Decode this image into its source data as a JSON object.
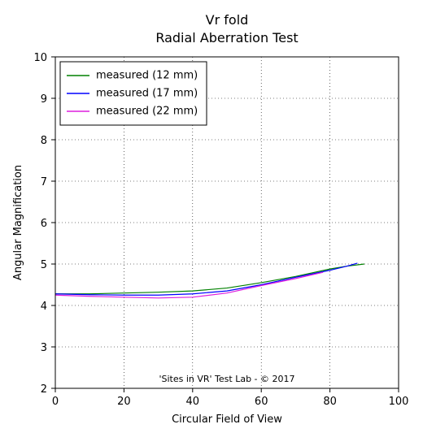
{
  "chart": {
    "type": "line",
    "title_line1": "Vr fold",
    "title_line2": "Radial Aberration Test",
    "title_fontsize": 16,
    "xlabel": "Circular Field of View",
    "ylabel": "Angular Magnification",
    "label_fontsize": 13,
    "tick_fontsize": 13,
    "footer_text": "'Sites in VR' Test Lab - © 2017",
    "footer_fontsize": 11,
    "background_color": "#ffffff",
    "plot_border_color": "#000000",
    "grid_color": "#000000",
    "grid_dash": "1 3",
    "xlim": [
      0,
      100
    ],
    "ylim": [
      2,
      10
    ],
    "xtick_step": 20,
    "ytick_step": 1,
    "xticks": [
      0,
      20,
      40,
      60,
      80,
      100
    ],
    "yticks": [
      2,
      3,
      4,
      5,
      6,
      7,
      8,
      9,
      10
    ],
    "legend": {
      "position": "upper-left",
      "border_color": "#000000",
      "background_color": "#ffffff",
      "fontsize": 13
    },
    "series": [
      {
        "label": "measured (12 mm)",
        "color": "#008000",
        "linewidth": 1.2,
        "x": [
          0,
          10,
          20,
          30,
          40,
          50,
          60,
          70,
          80,
          85,
          90
        ],
        "y": [
          4.28,
          4.28,
          4.3,
          4.32,
          4.35,
          4.42,
          4.55,
          4.7,
          4.88,
          4.95,
          5.0
        ]
      },
      {
        "label": "measured (17 mm)",
        "color": "#0000ff",
        "linewidth": 1.2,
        "x": [
          0,
          10,
          20,
          30,
          40,
          50,
          60,
          70,
          80,
          85,
          88
        ],
        "y": [
          4.28,
          4.26,
          4.25,
          4.25,
          4.28,
          4.35,
          4.5,
          4.68,
          4.85,
          4.95,
          5.02
        ]
      },
      {
        "label": "measured (22 mm)",
        "color": "#de1ede",
        "linewidth": 1.2,
        "x": [
          0,
          10,
          20,
          30,
          40,
          50,
          60,
          70,
          78
        ],
        "y": [
          4.25,
          4.22,
          4.2,
          4.18,
          4.2,
          4.3,
          4.48,
          4.65,
          4.8
        ]
      }
    ]
  }
}
